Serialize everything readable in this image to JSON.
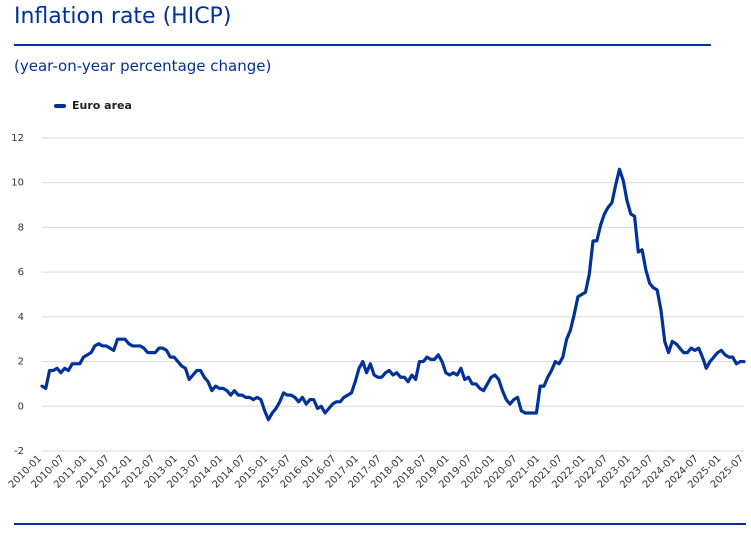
{
  "title": "Inflation rate (HICP)",
  "subtitle": "(year-on-year percentage change)",
  "colors": {
    "accent": "#003299",
    "grid": "#d9d9d9",
    "tick_text": "#333333"
  },
  "chart_data": {
    "type": "line",
    "title": "Inflation rate (HICP)",
    "subtitle": "(year-on-year percentage change)",
    "xlabel": "",
    "ylabel": "",
    "ylim": [
      -2,
      12
    ],
    "yticks": [
      -2,
      0,
      2,
      4,
      6,
      8,
      10,
      12
    ],
    "grid": true,
    "legend_position": "top-left",
    "start_month": "2010-01",
    "x_tick_labels": [
      "2010-01",
      "2010-07",
      "2011-01",
      "2011-07",
      "2012-01",
      "2012-07",
      "2013-01",
      "2013-07",
      "2014-01",
      "2014-07",
      "2015-01",
      "2015-07",
      "2016-01",
      "2016-07",
      "2017-01",
      "2017-07",
      "2018-01",
      "2018-07",
      "2019-01",
      "2019-07",
      "2020-01",
      "2020-07",
      "2021-01",
      "2021-07",
      "2022-01",
      "2022-07",
      "2023-01",
      "2023-07",
      "2024-01",
      "2024-07",
      "2025-01",
      "2025-07"
    ],
    "series": [
      {
        "name": "Euro area",
        "color": "#003299",
        "values": [
          0.9,
          0.8,
          1.6,
          1.6,
          1.7,
          1.5,
          1.7,
          1.6,
          1.9,
          1.9,
          1.9,
          2.2,
          2.3,
          2.4,
          2.7,
          2.8,
          2.7,
          2.7,
          2.6,
          2.5,
          3.0,
          3.0,
          3.0,
          2.8,
          2.7,
          2.7,
          2.7,
          2.6,
          2.4,
          2.4,
          2.4,
          2.6,
          2.6,
          2.5,
          2.2,
          2.2,
          2.0,
          1.8,
          1.7,
          1.2,
          1.4,
          1.6,
          1.6,
          1.3,
          1.1,
          0.7,
          0.9,
          0.8,
          0.8,
          0.7,
          0.5,
          0.7,
          0.5,
          0.5,
          0.4,
          0.4,
          0.3,
          0.4,
          0.3,
          -0.2,
          -0.6,
          -0.3,
          -0.1,
          0.2,
          0.6,
          0.5,
          0.5,
          0.4,
          0.2,
          0.4,
          0.1,
          0.3,
          0.3,
          -0.1,
          0.0,
          -0.3,
          -0.1,
          0.1,
          0.2,
          0.2,
          0.4,
          0.5,
          0.6,
          1.1,
          1.7,
          2.0,
          1.5,
          1.9,
          1.4,
          1.3,
          1.3,
          1.5,
          1.6,
          1.4,
          1.5,
          1.3,
          1.3,
          1.1,
          1.4,
          1.2,
          2.0,
          2.0,
          2.2,
          2.1,
          2.1,
          2.3,
          2.0,
          1.5,
          1.4,
          1.5,
          1.4,
          1.7,
          1.2,
          1.3,
          1.0,
          1.0,
          0.8,
          0.7,
          1.0,
          1.3,
          1.4,
          1.2,
          0.7,
          0.3,
          0.1,
          0.3,
          0.4,
          -0.2,
          -0.3,
          -0.3,
          -0.3,
          -0.3,
          0.9,
          0.9,
          1.3,
          1.6,
          2.0,
          1.9,
          2.2,
          3.0,
          3.4,
          4.1,
          4.9,
          5.0,
          5.1,
          5.9,
          7.4,
          7.4,
          8.1,
          8.6,
          8.9,
          9.1,
          9.9,
          10.6,
          10.1,
          9.2,
          8.6,
          8.5,
          6.9,
          7.0,
          6.1,
          5.5,
          5.3,
          5.2,
          4.3,
          2.9,
          2.4,
          2.9,
          2.8,
          2.6,
          2.4,
          2.4,
          2.6,
          2.5,
          2.6,
          2.2,
          1.7,
          2.0,
          2.2,
          2.4,
          2.5,
          2.3,
          2.2,
          2.2,
          1.9,
          2.0,
          2.0
        ]
      }
    ]
  }
}
